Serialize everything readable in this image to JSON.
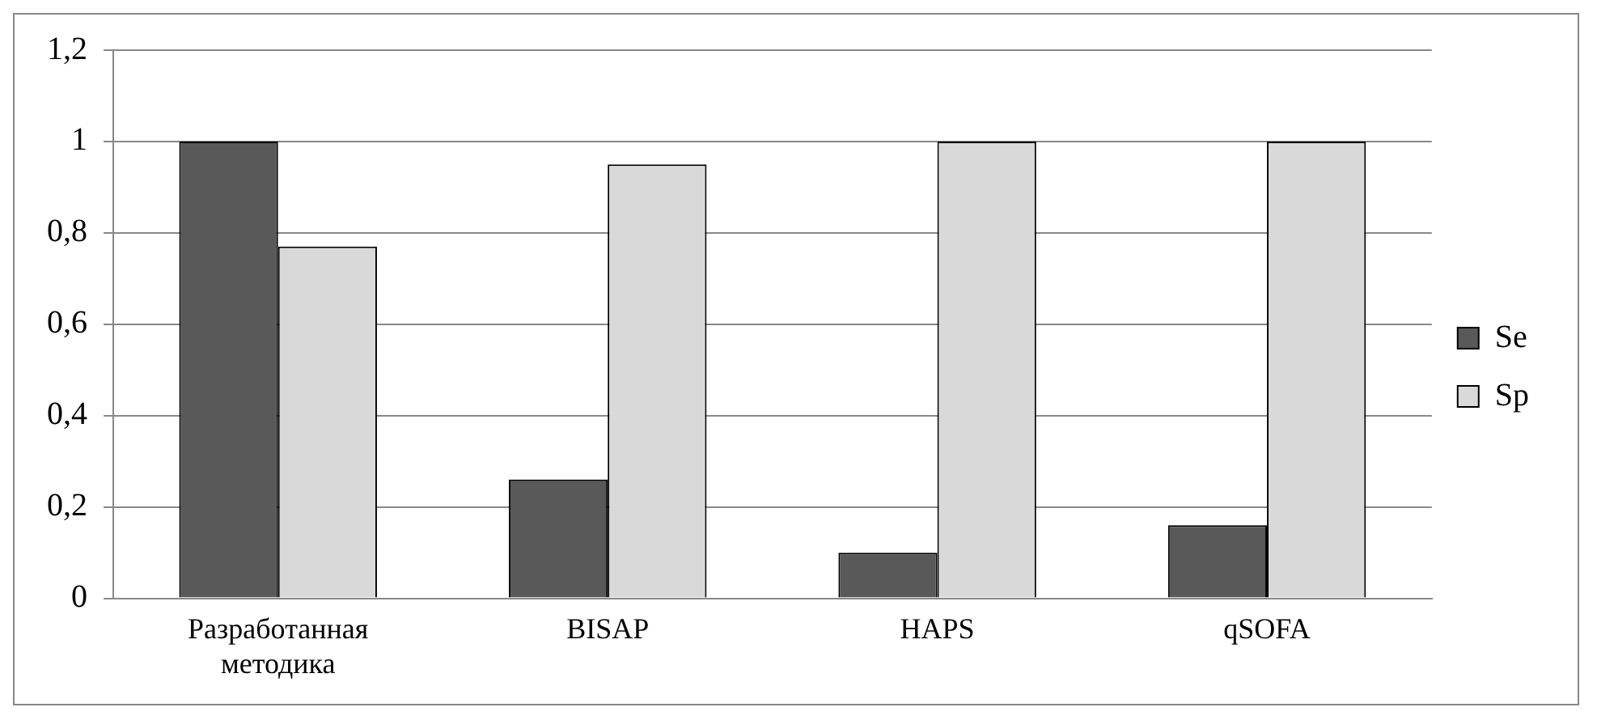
{
  "chart_data": {
    "type": "bar",
    "categories": [
      "Разработанная методика",
      "BISAP",
      "HAPS",
      "qSOFA"
    ],
    "series": [
      {
        "name": "Se",
        "color": "#595959",
        "values": [
          1,
          0.26,
          0.1,
          0.16
        ]
      },
      {
        "name": "Sp",
        "color": "#d9d9d9",
        "values": [
          0.77,
          0.95,
          1,
          1
        ]
      }
    ],
    "ylim": [
      0,
      1.2
    ],
    "yticks": [
      0,
      {
        "value": 0.2,
        "label": "0,2"
      },
      {
        "value": 0.4,
        "label": "0,4"
      },
      {
        "value": 0.6,
        "label": "0,6"
      },
      {
        "value": 0.8,
        "label": "0,8"
      },
      1,
      {
        "value": 1.2,
        "label": "1,2"
      }
    ],
    "grid": "y",
    "legend": "right"
  }
}
